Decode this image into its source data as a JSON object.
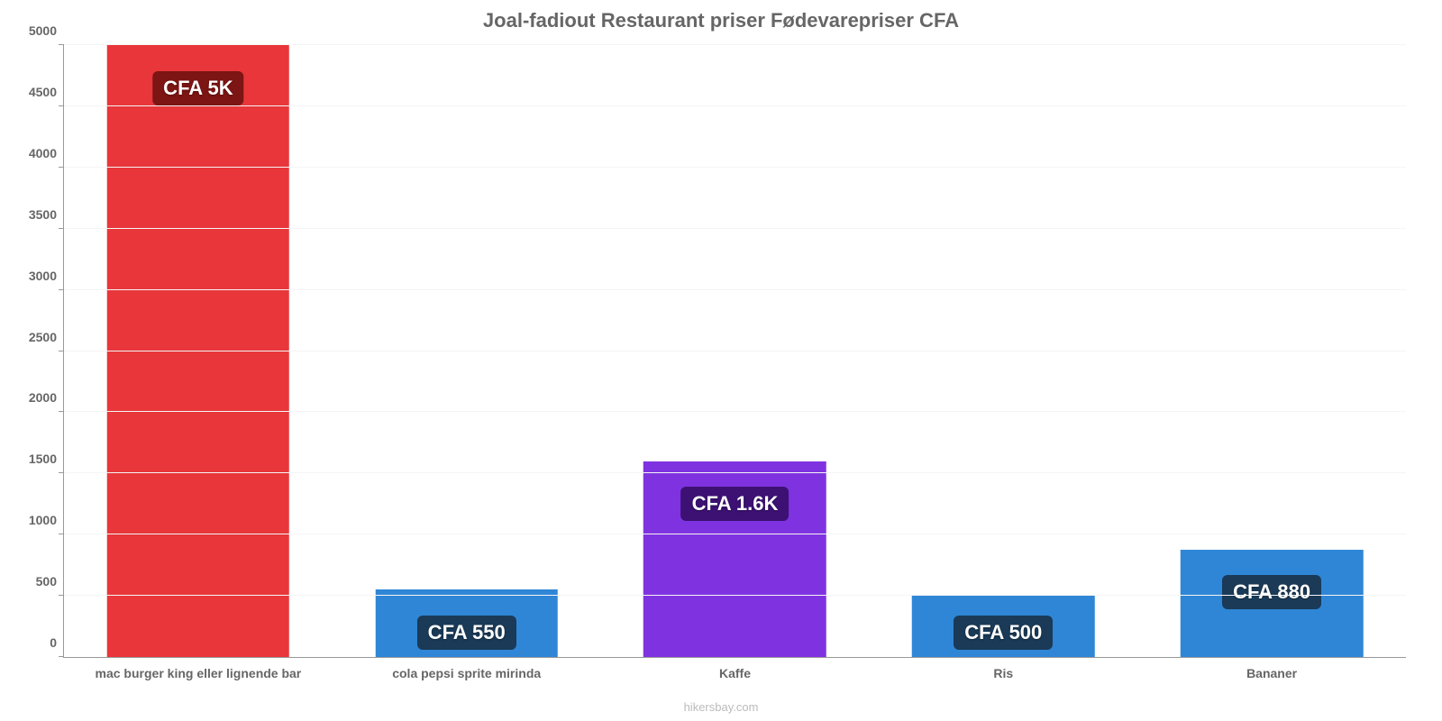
{
  "chart": {
    "type": "bar",
    "title": "Joal-fadiout Restaurant priser Fødevarepriser CFA",
    "title_fontsize": 22,
    "title_color": "#666666",
    "background_color": "#ffffff",
    "grid_color": "#f5f5f5",
    "axis_color": "#999999",
    "tick_label_color": "#666666",
    "tick_fontsize": 14,
    "x_label_fontsize": 14,
    "y_axis": {
      "min": 0,
      "max": 5000,
      "tick_step": 500,
      "ticks": [
        0,
        500,
        1000,
        1500,
        2000,
        2500,
        3000,
        3500,
        4000,
        4500,
        5000
      ]
    },
    "bar_width_pct": 68,
    "categories": [
      "mac burger king eller lignende bar",
      "cola pepsi sprite mirinda",
      "Kaffe",
      "Ris",
      "Bananer"
    ],
    "values": [
      5000,
      550,
      1600,
      500,
      880
    ],
    "bar_colors": [
      "#e8363a",
      "#2f86d6",
      "#7f33e0",
      "#2f86d6",
      "#2f86d6"
    ],
    "value_labels": [
      "CFA 5K",
      "CFA 550",
      "CFA 1.6K",
      "CFA 500",
      "CFA 880"
    ],
    "badge_bg_colors": [
      "#7c1513",
      "#1a3a57",
      "#3c1173",
      "#1a3a57",
      "#1a3a57"
    ],
    "badge_fontsize": 22,
    "badge_text_color": "#ffffff",
    "footer": "hikersbay.com",
    "footer_color": "#bbbbbb",
    "footer_fontsize": 13
  }
}
